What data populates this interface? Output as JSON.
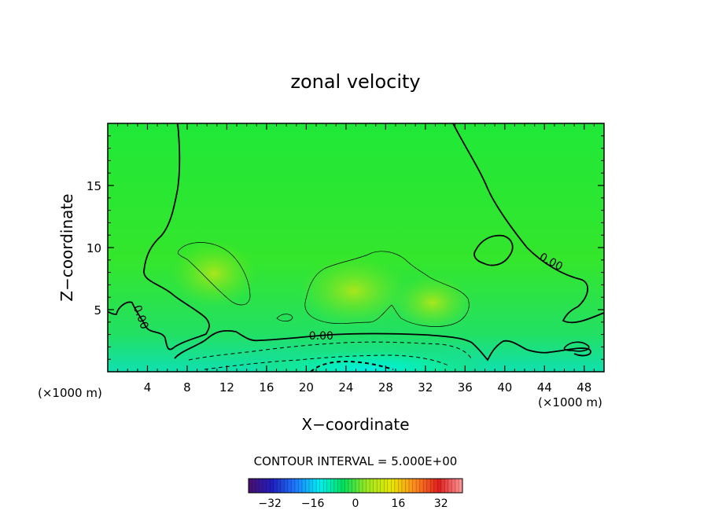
{
  "chart_data": {
    "type": "heatmap",
    "title": "zonal velocity",
    "xlabel": "X−coordinate",
    "ylabel": "Z−coordinate",
    "x_unit_left": "(×1000 m)",
    "x_unit_right": "(×1000 m)",
    "xlim": [
      0,
      50
    ],
    "ylim": [
      0,
      20
    ],
    "x_ticks": [
      4,
      8,
      12,
      16,
      20,
      24,
      28,
      32,
      36,
      40,
      44,
      48
    ],
    "y_ticks": [
      5,
      10,
      15
    ],
    "contour_interval_text": "CONTOUR INTERVAL = 5.000E+00",
    "contour_labels": [
      {
        "text": "0.00",
        "x": 3,
        "z": 4.3
      },
      {
        "text": "0.00",
        "x": 21.5,
        "z": 2.6
      },
      {
        "text": "0.00",
        "x": 44.5,
        "z": 8.6
      }
    ],
    "colorbar": {
      "range": [
        -40,
        40
      ],
      "ticks": [
        -32,
        -16,
        0,
        16,
        32
      ],
      "colors": [
        "#4a0d6e",
        "#1f1fbf",
        "#1e7bff",
        "#00f0f0",
        "#00e05a",
        "#9ee81e",
        "#e8e800",
        "#ff8a1e",
        "#e01e1e",
        "#ff9a9a"
      ]
    },
    "background_color": "#26e62a",
    "features": [
      {
        "kind": "positive-max",
        "x": 10.5,
        "z": 8.5,
        "value": 5
      },
      {
        "kind": "positive-max",
        "x": 25,
        "z": 6.5,
        "value": 5
      },
      {
        "kind": "positive-max",
        "x": 33,
        "z": 5,
        "value": 6
      },
      {
        "kind": "negative-min",
        "x": 24,
        "z": 0.5,
        "value": -15
      }
    ]
  }
}
